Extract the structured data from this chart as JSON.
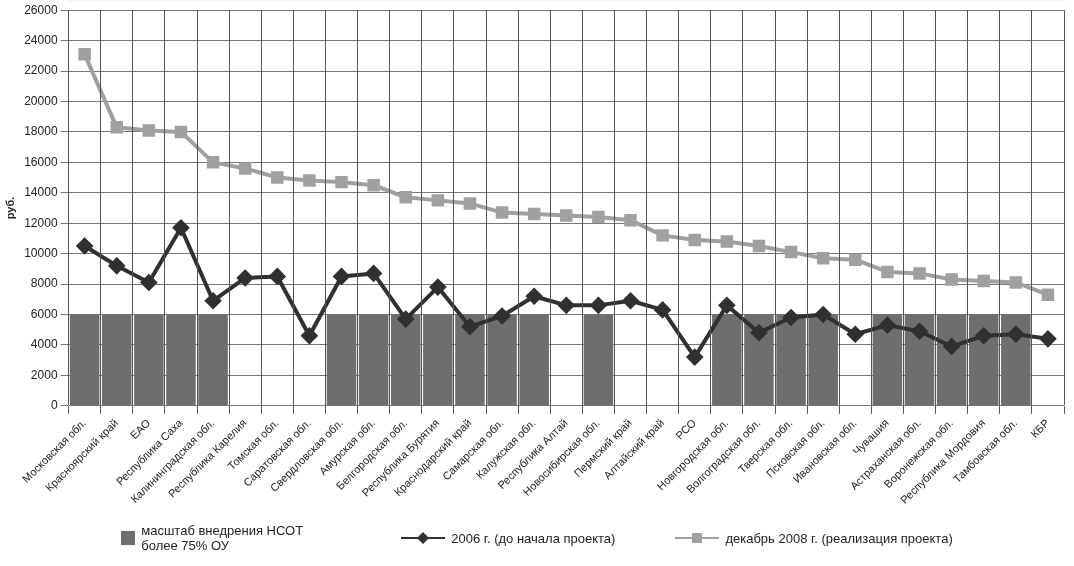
{
  "chart_data": {
    "type": "line",
    "ylabel": "руб.",
    "categories": [
      "Московская обл.",
      "Красноярский край",
      "ЕАО",
      "Республика Саха",
      "Калининградская обл.",
      "Республика Карелия",
      "Томская обл.",
      "Саратовская обл.",
      "Свердловская обл.",
      "Амурская обл.",
      "Белгородская обл.",
      "Республика Бурятия",
      "Краснодарский край",
      "Самарская обл.",
      "Калужская обл.",
      "Республика Алтай",
      "Новосибирская обл.",
      "Пермский край",
      "Алтайский край",
      "РСО",
      "Новгородская обл.",
      "Волгоградская обл.",
      "Тверская обл.",
      "Псковская обл.",
      "Ивановская обл.",
      "Чувашия",
      "Астраханская обл.",
      "Воронежская обл.",
      "Республика Мордовия",
      "Тамбовская обл.",
      "КБР"
    ],
    "series": [
      {
        "type": "bar",
        "name": "масштаб внедрения НСОТ более 75% ОУ",
        "color": "#6e6e6e",
        "values": [
          6000,
          6000,
          6000,
          6000,
          6000,
          null,
          null,
          null,
          6000,
          6000,
          6000,
          6000,
          6000,
          6000,
          6000,
          null,
          6000,
          null,
          null,
          null,
          6000,
          6000,
          6000,
          6000,
          null,
          6000,
          6000,
          6000,
          6000,
          6000,
          null
        ]
      },
      {
        "name": "2006 г. (до начала проекта)",
        "color": "#303030",
        "marker": "diamond",
        "values": [
          10500,
          9200,
          8100,
          11700,
          6900,
          8400,
          8500,
          4600,
          8500,
          8700,
          5700,
          7800,
          5200,
          5900,
          7200,
          6600,
          6600,
          6900,
          6300,
          3200,
          6600,
          4800,
          5800,
          6000,
          4700,
          5300,
          4900,
          3900,
          4600,
          4700,
          4400
        ]
      },
      {
        "name": "декабрь 2008 г. (реализация проекта)",
        "color": "#a0a0a0",
        "marker": "square",
        "values": [
          23100,
          18300,
          18100,
          18000,
          16000,
          15600,
          15000,
          14800,
          14700,
          14500,
          13700,
          13500,
          13300,
          12700,
          12600,
          12500,
          12400,
          12200,
          11200,
          10900,
          10800,
          10500,
          10100,
          9700,
          9600,
          8800,
          8700,
          8300,
          8200,
          8100,
          7300
        ]
      }
    ],
    "ylim": [
      0,
      26000
    ],
    "yticks": [
      0,
      2000,
      4000,
      6000,
      8000,
      10000,
      12000,
      14000,
      16000,
      18000,
      20000,
      22000,
      24000,
      26000
    ],
    "grid": true,
    "legend": "bottom"
  }
}
